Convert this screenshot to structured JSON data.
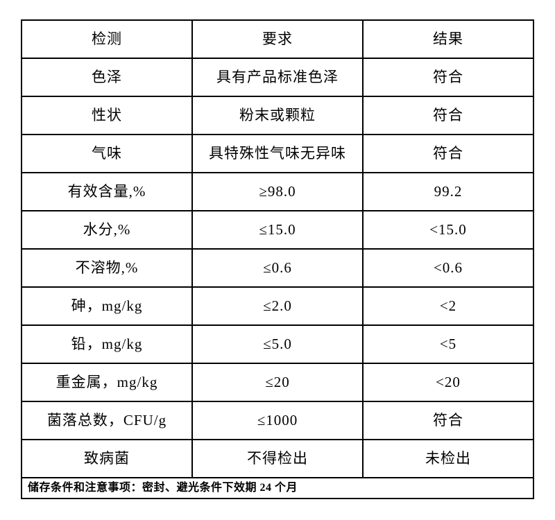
{
  "page": {
    "background": "#ffffff",
    "border_color": "#000000",
    "text_color": "#000000"
  },
  "table": {
    "headers": {
      "test": "检测",
      "requirement": "要求",
      "result": "结果"
    },
    "rows": [
      {
        "test": "色泽",
        "requirement": "具有产品标准色泽",
        "result": "符合"
      },
      {
        "test": "性状",
        "requirement": "粉末或颗粒",
        "result": "符合"
      },
      {
        "test": "气味",
        "requirement": "具特殊性气味无异味",
        "result": "符合"
      },
      {
        "test": "有效含量,%",
        "requirement": "≥98.0",
        "result": "99.2"
      },
      {
        "test": "水分,%",
        "requirement": "≤15.0",
        "result": "<15.0"
      },
      {
        "test": "不溶物,%",
        "requirement": "≤0.6",
        "result": "<0.6"
      },
      {
        "test": "砷，mg/kg",
        "requirement": "≤2.0",
        "result": "<2"
      },
      {
        "test": "铅，mg/kg",
        "requirement": "≤5.0",
        "result": "<5"
      },
      {
        "test": "重金属，mg/kg",
        "requirement": "≤20",
        "result": "<20"
      },
      {
        "test": "菌落总数，CFU/g",
        "requirement": "≤1000",
        "result": "符合"
      },
      {
        "test": "致病菌",
        "requirement": "不得检出",
        "result": "未检出"
      }
    ],
    "footer": "储存条件和注意事项：密封、避光条件下效期 24 个月"
  }
}
